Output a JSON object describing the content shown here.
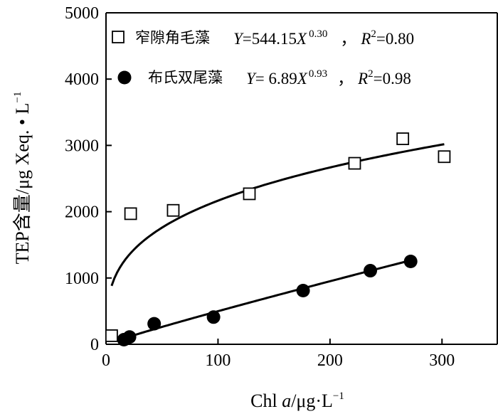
{
  "chart_data": {
    "type": "scatter",
    "xlabel_prefix": "Chl ",
    "xlabel_italic": "a",
    "xlabel_suffix": "/μg·L",
    "xlabel_exp": "−1",
    "ylabel_main": "TEP含量/μg Xeq. • L",
    "ylabel_exp": "−1",
    "xlim": [
      0,
      350
    ],
    "ylim": [
      0,
      5000
    ],
    "x_ticks": [
      0,
      100,
      200,
      300
    ],
    "y_ticks": [
      0,
      1000,
      2000,
      3000,
      4000,
      5000
    ],
    "x_tick_labels": [
      "0",
      "100",
      "200",
      "300"
    ],
    "y_tick_labels": [
      "0",
      "1000",
      "2000",
      "3000",
      "4000",
      "5000"
    ],
    "legend_position": "top-left",
    "series": [
      {
        "name": "窄隙角毛藻",
        "marker": "open-square",
        "color": "#000000",
        "equation_lhs": "Y",
        "equation_coef": "=544.15",
        "equation_var": "X",
        "equation_exp": "0.30",
        "r2_label": "R",
        "r2_exp": "2",
        "r2_value": "=0.80",
        "coef": 544.15,
        "exponent": 0.3,
        "fit_x_range": [
          5,
          302
        ],
        "points": [
          {
            "x": 5,
            "y": 130
          },
          {
            "x": 22,
            "y": 1970
          },
          {
            "x": 60,
            "y": 2020
          },
          {
            "x": 128,
            "y": 2270
          },
          {
            "x": 222,
            "y": 2730
          },
          {
            "x": 265,
            "y": 3100
          },
          {
            "x": 302,
            "y": 2830
          }
        ]
      },
      {
        "name": "布氏双尾藻",
        "marker": "filled-circle",
        "color": "#000000",
        "equation_lhs": "Y",
        "equation_coef": "= 6.89",
        "equation_var": "X",
        "equation_exp": "0.93",
        "r2_label": "R",
        "r2_exp": "2",
        "r2_value": "=0.98",
        "coef": 6.89,
        "exponent": 0.93,
        "fit_x_range": [
          14,
          272
        ],
        "points": [
          {
            "x": 16,
            "y": 70
          },
          {
            "x": 21,
            "y": 110
          },
          {
            "x": 43,
            "y": 310
          },
          {
            "x": 96,
            "y": 410
          },
          {
            "x": 176,
            "y": 810
          },
          {
            "x": 236,
            "y": 1110
          },
          {
            "x": 272,
            "y": 1250
          }
        ]
      }
    ]
  }
}
